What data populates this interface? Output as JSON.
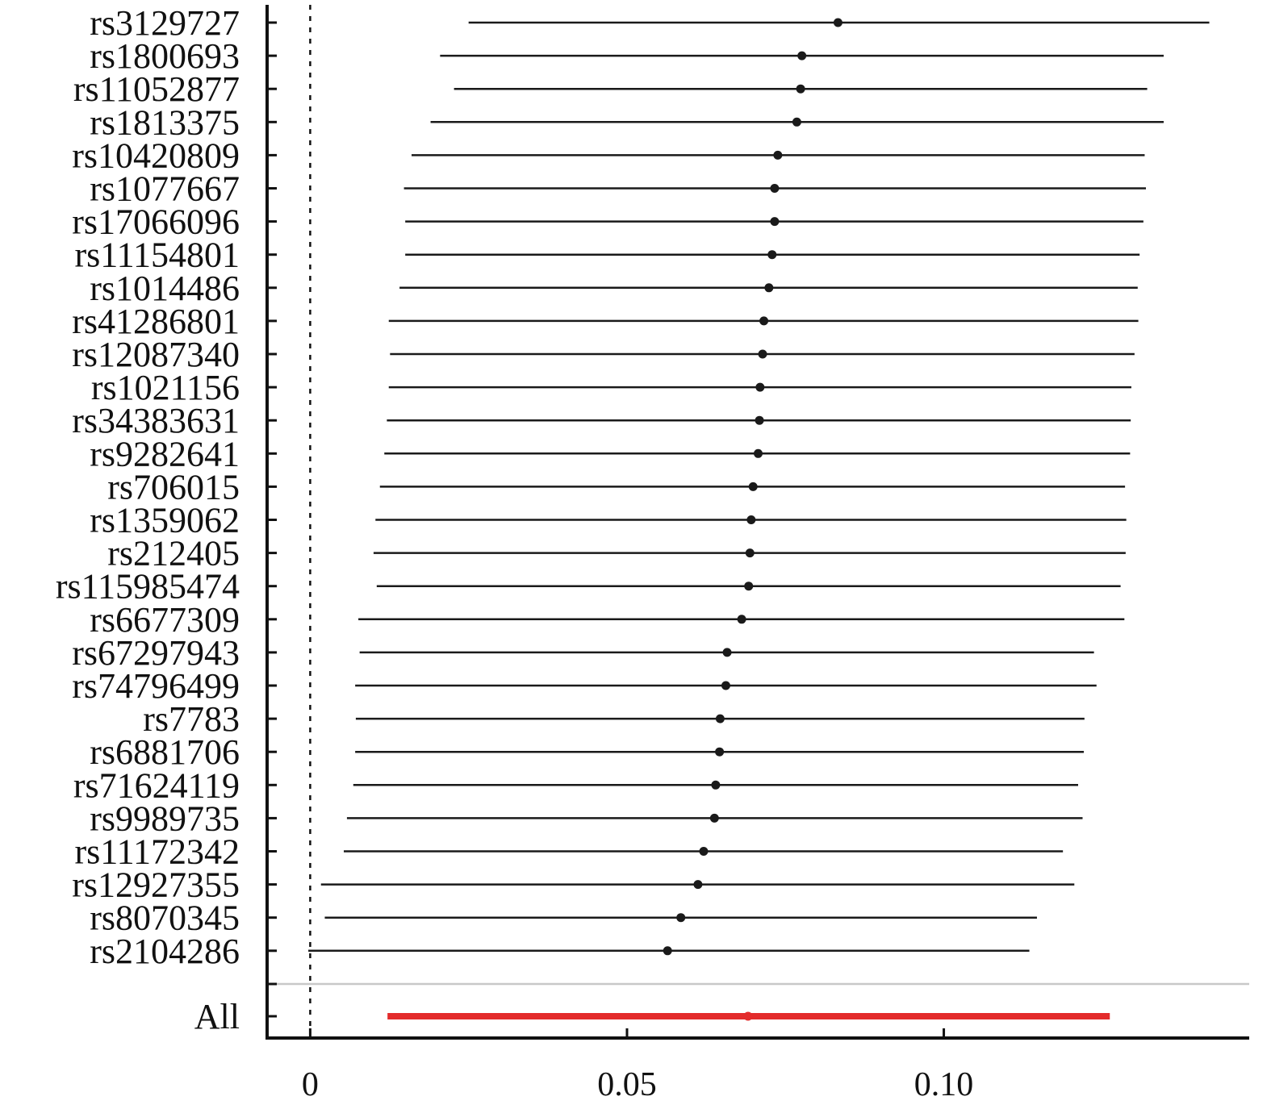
{
  "chart_data": {
    "type": "forest",
    "title": "",
    "xlabel": "",
    "ylabel": "",
    "x_ticks": [
      {
        "value": 0,
        "label": "0"
      },
      {
        "value": 0.05,
        "label": "0.05"
      },
      {
        "value": 0.1,
        "label": "0.10"
      }
    ],
    "xlim": [
      -0.0068,
      0.1482
    ],
    "reference_line": 0,
    "rows": [
      {
        "label": "rs3129727",
        "estimate": 0.0833,
        "lower": 0.025,
        "upper": 0.1419
      },
      {
        "label": "rs1800693",
        "estimate": 0.0776,
        "lower": 0.0205,
        "upper": 0.1347
      },
      {
        "label": "rs11052877",
        "estimate": 0.0774,
        "lower": 0.0227,
        "upper": 0.1321
      },
      {
        "label": "rs1813375",
        "estimate": 0.0768,
        "lower": 0.019,
        "upper": 0.1347
      },
      {
        "label": "rs10420809",
        "estimate": 0.0738,
        "lower": 0.016,
        "upper": 0.1317
      },
      {
        "label": "rs1077667",
        "estimate": 0.0733,
        "lower": 0.0148,
        "upper": 0.1319
      },
      {
        "label": "rs17066096",
        "estimate": 0.0733,
        "lower": 0.015,
        "upper": 0.1315
      },
      {
        "label": "rs11154801",
        "estimate": 0.0729,
        "lower": 0.015,
        "upper": 0.1309
      },
      {
        "label": "rs1014486",
        "estimate": 0.0724,
        "lower": 0.0141,
        "upper": 0.1306
      },
      {
        "label": "rs41286801",
        "estimate": 0.0716,
        "lower": 0.0124,
        "upper": 0.1307
      },
      {
        "label": "rs12087340",
        "estimate": 0.0714,
        "lower": 0.0126,
        "upper": 0.1301
      },
      {
        "label": "rs1021156",
        "estimate": 0.071,
        "lower": 0.0124,
        "upper": 0.1296
      },
      {
        "label": "rs34383631",
        "estimate": 0.0709,
        "lower": 0.0121,
        "upper": 0.1295
      },
      {
        "label": "rs9282641",
        "estimate": 0.0707,
        "lower": 0.0117,
        "upper": 0.1294
      },
      {
        "label": "rs706015",
        "estimate": 0.0699,
        "lower": 0.011,
        "upper": 0.1286
      },
      {
        "label": "rs1359062",
        "estimate": 0.0696,
        "lower": 0.0103,
        "upper": 0.1288
      },
      {
        "label": "rs212405",
        "estimate": 0.0694,
        "lower": 0.01,
        "upper": 0.1287
      },
      {
        "label": "rs115985474",
        "estimate": 0.0692,
        "lower": 0.0105,
        "upper": 0.1279
      },
      {
        "label": "rs6677309",
        "estimate": 0.0681,
        "lower": 0.0076,
        "upper": 0.1285
      },
      {
        "label": "rs67297943",
        "estimate": 0.0658,
        "lower": 0.0078,
        "upper": 0.1237
      },
      {
        "label": "rs74796499",
        "estimate": 0.0656,
        "lower": 0.0071,
        "upper": 0.1241
      },
      {
        "label": "rs7783",
        "estimate": 0.0647,
        "lower": 0.0072,
        "upper": 0.1222
      },
      {
        "label": "rs6881706",
        "estimate": 0.0646,
        "lower": 0.0071,
        "upper": 0.1221
      },
      {
        "label": "rs71624119",
        "estimate": 0.064,
        "lower": 0.0068,
        "upper": 0.1212
      },
      {
        "label": "rs9989735",
        "estimate": 0.0638,
        "lower": 0.0058,
        "upper": 0.1219
      },
      {
        "label": "rs11172342",
        "estimate": 0.0621,
        "lower": 0.0053,
        "upper": 0.1188
      },
      {
        "label": "rs12927355",
        "estimate": 0.0612,
        "lower": 0.0017,
        "upper": 0.1206
      },
      {
        "label": "rs8070345",
        "estimate": 0.0585,
        "lower": 0.0023,
        "upper": 0.1147
      },
      {
        "label": "rs2104286",
        "estimate": 0.0564,
        "lower": -0.0003,
        "upper": 0.1135
      }
    ],
    "summary": {
      "label": "All",
      "estimate": 0.0691,
      "lower": 0.0122,
      "upper": 0.1262
    },
    "colors": {
      "row_line": "#1a1a1a",
      "row_point": "#1a1a1a",
      "summary": "#e32b2b",
      "axis": "#111111",
      "separator": "#c8c8c8"
    },
    "grid": false
  }
}
